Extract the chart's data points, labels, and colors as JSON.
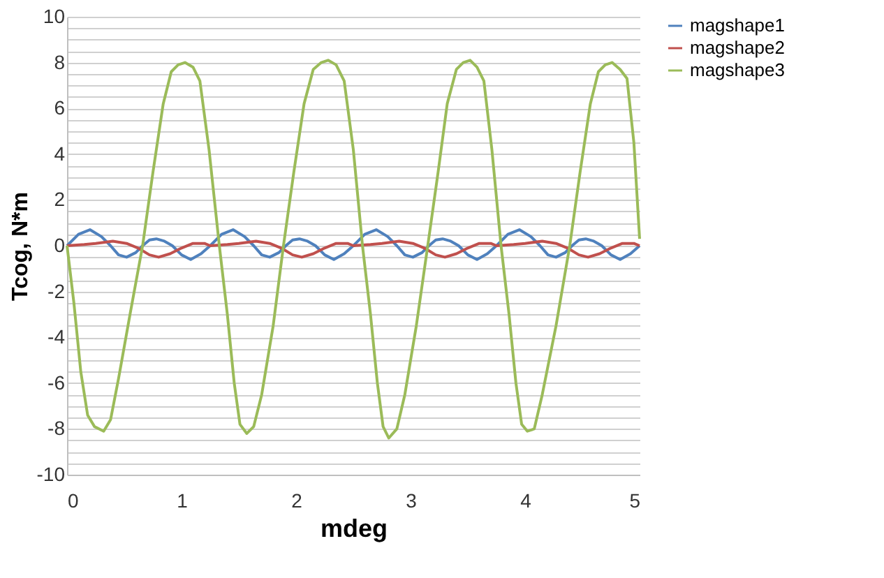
{
  "chart_data": {
    "type": "line",
    "xlabel": "mdeg",
    "ylabel": "Tcog, N*m",
    "xlim": [
      0,
      5
    ],
    "xticks": [
      0,
      1,
      2,
      3,
      4,
      5
    ],
    "ylim": [
      -10,
      10
    ],
    "yticks": [
      -10,
      {
        "value": -9.5,
        "label": null
      },
      {
        "value": -9,
        "label": null
      },
      {
        "value": -8.5,
        "label": null
      },
      -8,
      {
        "value": -7.5,
        "label": null
      },
      {
        "value": -7,
        "label": null
      },
      {
        "value": -6.5,
        "label": null
      },
      -6,
      {
        "value": -5.5,
        "label": null
      },
      {
        "value": -5,
        "label": null
      },
      {
        "value": -4.5,
        "label": null
      },
      -4,
      {
        "value": -3.5,
        "label": null
      },
      {
        "value": -3,
        "label": null
      },
      {
        "value": -2.5,
        "label": null
      },
      -2,
      {
        "value": -1.5,
        "label": null
      },
      {
        "value": -1,
        "label": null
      },
      {
        "value": -0.5,
        "label": null
      },
      0,
      {
        "value": 0.5,
        "label": null
      },
      {
        "value": 1,
        "label": null
      },
      {
        "value": 1.5,
        "label": null
      },
      2,
      {
        "value": 2.5,
        "label": null
      },
      {
        "value": 3,
        "label": null
      },
      {
        "value": 3.5,
        "label": null
      },
      4,
      {
        "value": 4.5,
        "label": null
      },
      {
        "value": 5,
        "label": null
      },
      {
        "value": 5.5,
        "label": null
      },
      6,
      {
        "value": 6.5,
        "label": null
      },
      {
        "value": 7,
        "label": null
      },
      {
        "value": 7.5,
        "label": null
      },
      8,
      {
        "value": 8.5,
        "label": null
      },
      {
        "value": 9,
        "label": null
      },
      {
        "value": 9.5,
        "label": null
      },
      10
    ],
    "grid": "y",
    "legend": "right",
    "marker": "none",
    "line_style": "solid",
    "series": [
      {
        "name": "magshape1",
        "color": "#4f81bd",
        "x": [
          0,
          0.1,
          0.2,
          0.3,
          0.38,
          0.45,
          0.52,
          0.6,
          0.66,
          0.72,
          0.78,
          0.85,
          0.92,
          1.0,
          1.08,
          1.17,
          1.25,
          1.35,
          1.45,
          1.55,
          1.63,
          1.7,
          1.77,
          1.85,
          1.91,
          1.97,
          2.03,
          2.1,
          2.17,
          2.25,
          2.33,
          2.42,
          2.5,
          2.6,
          2.7,
          2.8,
          2.88,
          2.95,
          3.02,
          3.1,
          3.16,
          3.22,
          3.28,
          3.35,
          3.42,
          3.5,
          3.58,
          3.67,
          3.75,
          3.85,
          3.95,
          4.05,
          4.13,
          4.2,
          4.27,
          4.35,
          4.41,
          4.47,
          4.53,
          4.6,
          4.67,
          4.75,
          4.83,
          4.92,
          5.0
        ],
        "values": [
          0,
          0.5,
          0.7,
          0.4,
          0,
          -0.4,
          -0.5,
          -0.3,
          0,
          0.25,
          0.3,
          0.2,
          0,
          -0.4,
          -0.6,
          -0.35,
          0,
          0.5,
          0.7,
          0.4,
          0,
          -0.4,
          -0.5,
          -0.3,
          0,
          0.25,
          0.3,
          0.2,
          0,
          -0.4,
          -0.6,
          -0.35,
          0,
          0.5,
          0.7,
          0.4,
          0,
          -0.4,
          -0.5,
          -0.3,
          0,
          0.25,
          0.3,
          0.2,
          0,
          -0.4,
          -0.6,
          -0.35,
          0,
          0.5,
          0.7,
          0.4,
          0,
          -0.4,
          -0.5,
          -0.3,
          0,
          0.25,
          0.3,
          0.2,
          0,
          -0.4,
          -0.6,
          -0.35,
          0
        ]
      },
      {
        "name": "magshape2",
        "color": "#c0504d",
        "x": [
          0,
          0.15,
          0.25,
          0.4,
          0.52,
          0.62,
          0.72,
          0.8,
          0.9,
          1.0,
          1.1,
          1.2,
          1.25,
          1.4,
          1.5,
          1.65,
          1.77,
          1.87,
          1.97,
          2.05,
          2.15,
          2.25,
          2.35,
          2.45,
          2.5,
          2.65,
          2.75,
          2.9,
          3.02,
          3.12,
          3.22,
          3.3,
          3.4,
          3.5,
          3.6,
          3.7,
          3.75,
          3.9,
          4.0,
          4.15,
          4.27,
          4.37,
          4.47,
          4.55,
          4.65,
          4.75,
          4.85,
          4.95,
          5.0
        ],
        "values": [
          0,
          0.05,
          0.1,
          0.2,
          0.1,
          -0.1,
          -0.4,
          -0.5,
          -0.35,
          -0.1,
          0.1,
          0.1,
          0,
          0.05,
          0.1,
          0.2,
          0.1,
          -0.1,
          -0.4,
          -0.5,
          -0.35,
          -0.1,
          0.1,
          0.1,
          0,
          0.05,
          0.1,
          0.2,
          0.1,
          -0.1,
          -0.4,
          -0.5,
          -0.35,
          -0.1,
          0.1,
          0.1,
          0,
          0.05,
          0.1,
          0.2,
          0.1,
          -0.1,
          -0.4,
          -0.5,
          -0.35,
          -0.1,
          0.1,
          0.1,
          0
        ]
      },
      {
        "name": "magshape3",
        "color": "#9bbb59",
        "x": [
          0,
          0.06,
          0.12,
          0.18,
          0.24,
          0.32,
          0.38,
          0.45,
          0.55,
          0.66,
          0.75,
          0.84,
          0.91,
          0.97,
          1.03,
          1.1,
          1.16,
          1.24,
          1.33,
          1.4,
          1.46,
          1.51,
          1.57,
          1.63,
          1.7,
          1.8,
          1.89,
          1.98,
          2.07,
          2.15,
          2.22,
          2.28,
          2.35,
          2.42,
          2.5,
          2.58,
          2.65,
          2.71,
          2.76,
          2.81,
          2.88,
          2.95,
          3.05,
          3.15,
          3.24,
          3.32,
          3.4,
          3.46,
          3.52,
          3.58,
          3.64,
          3.71,
          3.79,
          3.86,
          3.92,
          3.97,
          4.02,
          4.08,
          4.15,
          4.27,
          4.39,
          4.48,
          4.57,
          4.64,
          4.7,
          4.76,
          4.83,
          4.89,
          4.95,
          5.0
        ],
        "values": [
          0,
          -2.5,
          -5.5,
          -7.4,
          -7.9,
          -8.1,
          -7.6,
          -5.8,
          -3,
          0,
          3.2,
          6.2,
          7.6,
          7.9,
          8.0,
          7.8,
          7.2,
          4.2,
          0,
          -3,
          -6,
          -7.8,
          -8.2,
          -7.9,
          -6.5,
          -3.5,
          0,
          3.2,
          6.2,
          7.7,
          8.0,
          8.1,
          7.9,
          7.2,
          4.2,
          0,
          -3,
          -6,
          -7.9,
          -8.4,
          -8.0,
          -6.5,
          -3.5,
          0,
          3.2,
          6.2,
          7.7,
          8.0,
          8.1,
          7.8,
          7.2,
          4.2,
          0,
          -3,
          -6,
          -7.8,
          -8.1,
          -8.0,
          -6.5,
          -3.5,
          0,
          3.2,
          6.2,
          7.6,
          7.9,
          8.0,
          7.7,
          7.3,
          4.5,
          0.3
        ]
      }
    ]
  }
}
